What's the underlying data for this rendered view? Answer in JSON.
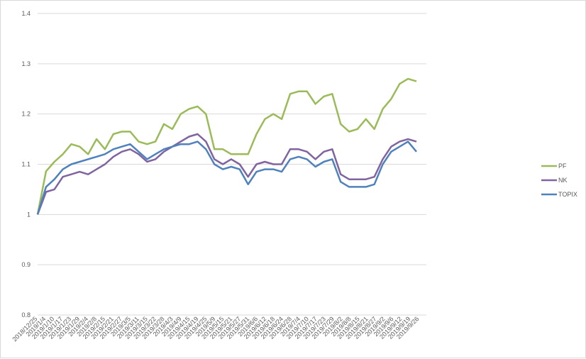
{
  "chart_data": {
    "type": "line",
    "ylim": [
      0.8,
      1.4
    ],
    "y_ticks": [
      "0.8",
      "0.9",
      "1",
      "1.1",
      "1.2",
      "1.3",
      "1.4"
    ],
    "grid": "horizontal",
    "legend_position": "right",
    "x_tick_labels": [
      "2018/12/25",
      "2019/1/4",
      "2019/1/10",
      "2019/1/17",
      "2019/1/23",
      "2019/1/29",
      "2019/2/4",
      "2019/2/8",
      "2019/2/15",
      "2019/2/21",
      "2019/2/27",
      "2019/3/5",
      "2019/3/11",
      "2019/3/15",
      "2019/3/22",
      "2019/3/28",
      "2019/4/3",
      "2019/4/9",
      "2019/4/15",
      "2019/4/19",
      "2019/4/25",
      "2019/5/9",
      "2019/5/15",
      "2019/5/21",
      "2019/5/27",
      "2019/5/31",
      "2019/6/6",
      "2019/6/12",
      "2019/6/18",
      "2019/6/24",
      "2019/6/28",
      "2019/7/4",
      "2019/7/10",
      "2019/7/17",
      "2019/7/23",
      "2019/7/29",
      "2019/8/2",
      "2019/8/8",
      "2019/8/15",
      "2019/8/21",
      "2019/8/27",
      "2019/9/2",
      "2019/9/6",
      "2019/9/12",
      "2019/9/19",
      "2019/9/26"
    ],
    "series": [
      {
        "name": "PF",
        "color": "#9bbb59",
        "values": [
          1.0,
          1.086,
          1.105,
          1.12,
          1.14,
          1.135,
          1.12,
          1.15,
          1.13,
          1.16,
          1.165,
          1.165,
          1.145,
          1.14,
          1.145,
          1.18,
          1.17,
          1.2,
          1.21,
          1.215,
          1.2,
          1.13,
          1.13,
          1.12,
          1.12,
          1.12,
          1.16,
          1.19,
          1.2,
          1.19,
          1.24,
          1.245,
          1.245,
          1.22,
          1.235,
          1.24,
          1.18,
          1.165,
          1.17,
          1.19,
          1.17,
          1.21,
          1.23,
          1.26,
          1.27,
          1.265
        ]
      },
      {
        "name": "NK",
        "color": "#8064a2",
        "values": [
          1.0,
          1.045,
          1.05,
          1.075,
          1.08,
          1.085,
          1.08,
          1.09,
          1.1,
          1.115,
          1.125,
          1.13,
          1.12,
          1.105,
          1.11,
          1.125,
          1.135,
          1.145,
          1.155,
          1.16,
          1.145,
          1.11,
          1.1,
          1.11,
          1.1,
          1.075,
          1.1,
          1.105,
          1.1,
          1.1,
          1.13,
          1.13,
          1.125,
          1.11,
          1.125,
          1.13,
          1.08,
          1.07,
          1.07,
          1.07,
          1.075,
          1.11,
          1.135,
          1.145,
          1.15,
          1.145
        ]
      },
      {
        "name": "TOPIX",
        "color": "#4f81bd",
        "values": [
          1.0,
          1.055,
          1.07,
          1.09,
          1.1,
          1.105,
          1.11,
          1.115,
          1.12,
          1.13,
          1.135,
          1.14,
          1.125,
          1.11,
          1.12,
          1.13,
          1.135,
          1.14,
          1.14,
          1.145,
          1.13,
          1.1,
          1.09,
          1.095,
          1.09,
          1.06,
          1.085,
          1.09,
          1.09,
          1.085,
          1.11,
          1.115,
          1.11,
          1.095,
          1.105,
          1.11,
          1.065,
          1.055,
          1.055,
          1.055,
          1.06,
          1.1,
          1.125,
          1.135,
          1.145,
          1.125
        ]
      }
    ]
  }
}
